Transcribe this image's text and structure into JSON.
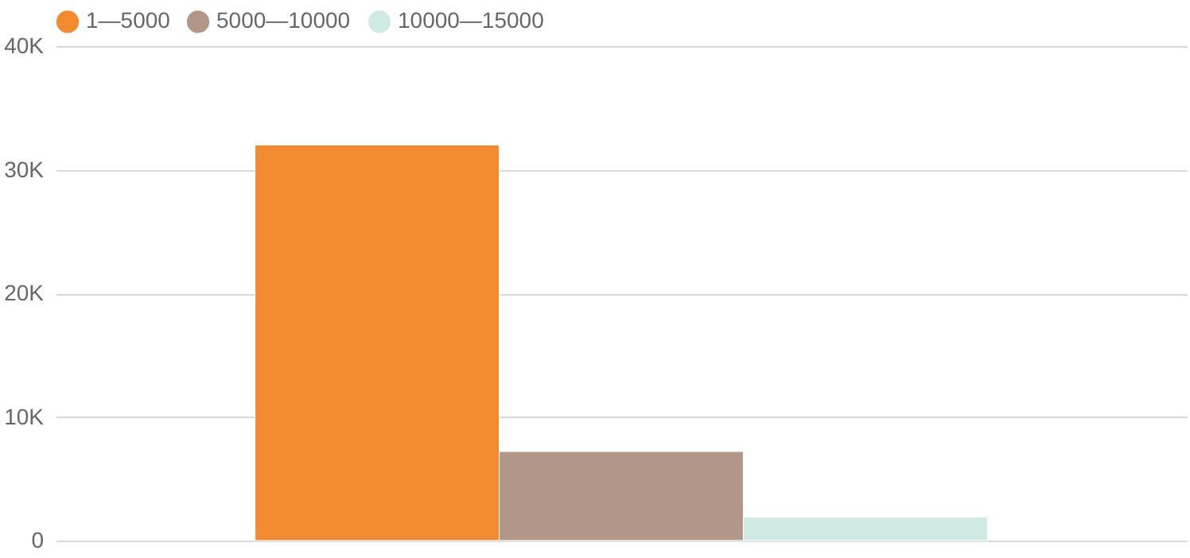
{
  "chart_data": {
    "type": "bar",
    "categories": [
      null
    ],
    "series": [
      {
        "name": "1—5000",
        "color": "#f28b2f",
        "values": [
          32000
        ]
      },
      {
        "name": "5000—10000",
        "color": "#b0978a",
        "values": [
          7200
        ]
      },
      {
        "name": "10000—15000",
        "color": "#cfe9e3",
        "values": [
          1900
        ]
      }
    ],
    "ylim": [
      0,
      40000
    ],
    "yticks": [
      {
        "value": 0,
        "label": "0"
      },
      {
        "value": 10000,
        "label": "10K"
      },
      {
        "value": 20000,
        "label": "20K"
      },
      {
        "value": 30000,
        "label": "30K"
      },
      {
        "value": 40000,
        "label": "40K"
      }
    ],
    "grid": "y",
    "legend": "top",
    "tick_labels": "y"
  }
}
